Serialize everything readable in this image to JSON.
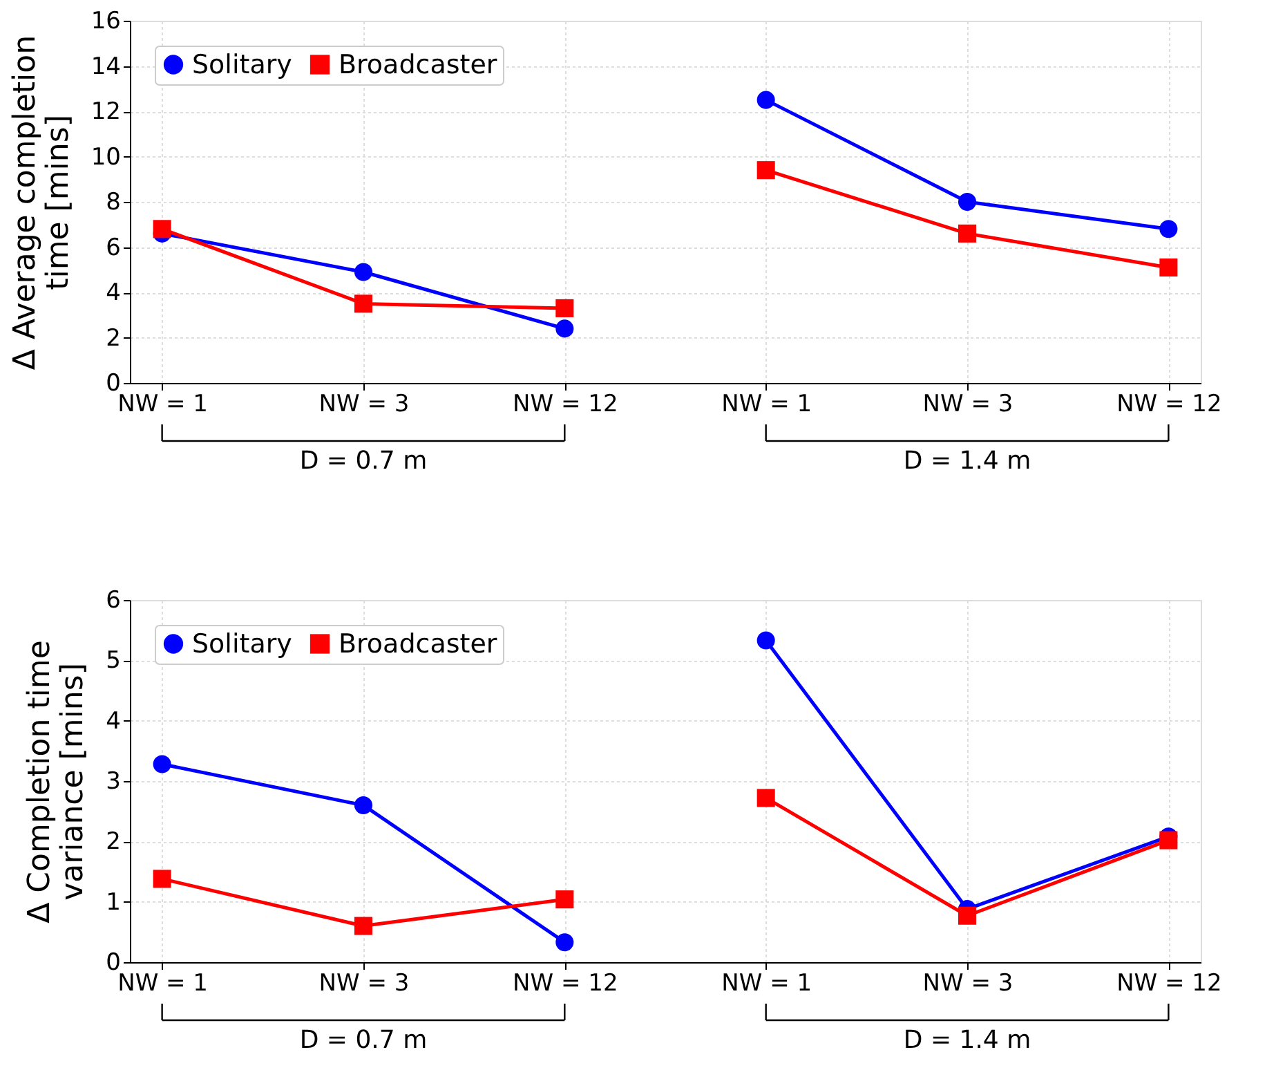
{
  "chart_data": [
    {
      "type": "line",
      "ylabel": "Δ Average completion\ntime [mins]",
      "categories": [
        "NW = 1",
        "NW = 3",
        "NW = 12",
        "NW = 1",
        "NW = 3",
        "NW = 12"
      ],
      "ylim": [
        0,
        16
      ],
      "yticks": [
        0,
        2,
        4,
        6,
        8,
        10,
        12,
        14,
        16
      ],
      "grid": true,
      "legend": "top left",
      "line_style": "solid",
      "annotations": [
        "D = 0.7 m",
        "D = 1.4 m"
      ],
      "series": [
        {
          "name": "Solitary",
          "color": "#0000ff",
          "marker": "circle",
          "values": [
            6.6,
            4.9,
            2.4,
            null,
            null,
            null
          ]
        },
        {
          "color": "#0000ff",
          "marker": "circle",
          "values": [
            null,
            null,
            null,
            12.5,
            8.0,
            6.8
          ]
        },
        {
          "name": "Broadcaster",
          "color": "#ff0000",
          "marker": "square",
          "values": [
            6.8,
            3.5,
            3.3,
            null,
            null,
            null
          ]
        },
        {
          "color": "#ff0000",
          "marker": "square",
          "values": [
            null,
            null,
            null,
            9.4,
            6.6,
            5.1
          ]
        }
      ]
    },
    {
      "type": "line",
      "ylabel": "Δ Completion time\nvariance [mins]",
      "categories": [
        "NW = 1",
        "NW = 3",
        "NW = 12",
        "NW = 1",
        "NW = 3",
        "NW = 12"
      ],
      "ylim": [
        0,
        6
      ],
      "yticks": [
        0,
        1,
        2,
        3,
        4,
        5,
        6
      ],
      "grid": true,
      "legend": "top left",
      "line_style": "solid",
      "annotations": [
        "D = 0.7 m",
        "D = 1.4 m"
      ],
      "series": [
        {
          "name": "Solitary",
          "color": "#0000ff",
          "marker": "circle",
          "values": [
            3.28,
            2.6,
            0.33,
            null,
            null,
            null
          ]
        },
        {
          "color": "#0000ff",
          "marker": "circle",
          "values": [
            null,
            null,
            null,
            5.33,
            0.88,
            2.08
          ]
        },
        {
          "name": "Broadcaster",
          "color": "#ff0000",
          "marker": "square",
          "values": [
            1.38,
            0.6,
            1.04,
            null,
            null,
            null
          ]
        },
        {
          "color": "#ff0000",
          "marker": "square",
          "values": [
            null,
            null,
            null,
            2.72,
            0.77,
            2.02
          ]
        }
      ]
    }
  ]
}
